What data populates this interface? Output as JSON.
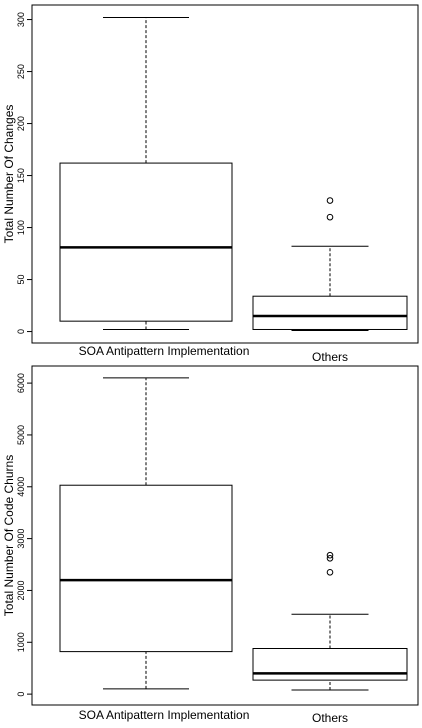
{
  "chart_data": [
    {
      "type": "boxplot",
      "ylabel": "Total Number Of Changes",
      "categories": [
        "SOA Antipattern Implementation",
        "Others"
      ],
      "boxes": [
        {
          "min": 2,
          "q1": 10,
          "median": 81,
          "q3": 162,
          "max": 302,
          "outliers": []
        },
        {
          "min": 1,
          "q1": 2,
          "median": 15,
          "q3": 34,
          "max": 82,
          "outliers": [
            110,
            126
          ]
        }
      ],
      "ylim": [
        -11,
        314
      ],
      "yticks": [
        0,
        50,
        100,
        150,
        200,
        250,
        300
      ],
      "color": "#000000"
    },
    {
      "type": "boxplot",
      "ylabel": "Total Number Of Code Churns",
      "categories": [
        "SOA Antipattern Implementation",
        "Others"
      ],
      "boxes": [
        {
          "min": 100,
          "q1": 820,
          "median": 2200,
          "q3": 4030,
          "max": 6100,
          "outliers": []
        },
        {
          "min": 80,
          "q1": 270,
          "median": 400,
          "q3": 880,
          "max": 1540,
          "outliers": [
            2350,
            2620,
            2680
          ]
        }
      ],
      "ylim": [
        -210,
        6330
      ],
      "yticks": [
        0,
        1000,
        2000,
        3000,
        4000,
        5000,
        6000
      ],
      "color": "#000000"
    }
  ]
}
